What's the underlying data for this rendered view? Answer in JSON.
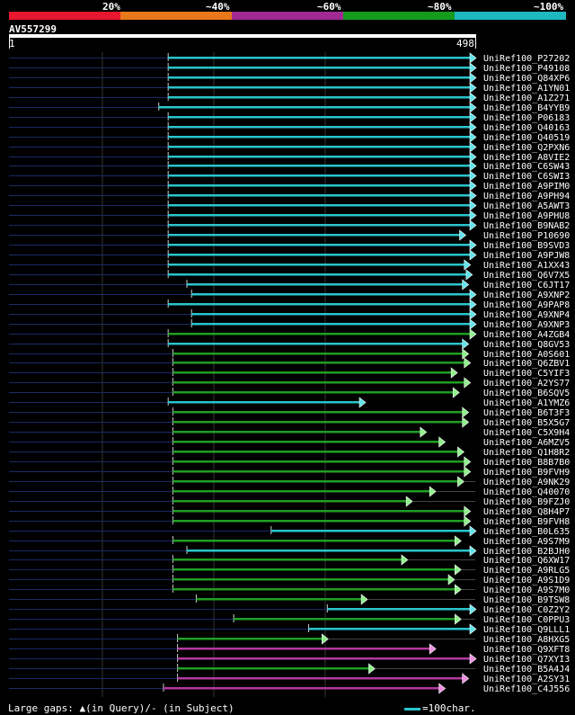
{
  "legend": {
    "labels": [
      "20%",
      "~40%",
      "~60%",
      "~80%",
      "~100%"
    ],
    "colors": [
      "#e8162f",
      "#e8781a",
      "#a02a94",
      "#159a1c",
      "#1db8c0"
    ]
  },
  "query": {
    "id": "AV557299",
    "start": "1",
    "end": "498",
    "length": 498
  },
  "hits": [
    {
      "name": "UniRef100_P27202",
      "start": 170,
      "end": 498,
      "color": "cyan",
      "pre": "dark",
      "post": ""
    },
    {
      "name": "UniRef100_P49108",
      "start": 170,
      "end": 498,
      "color": "cyan",
      "pre": "dark",
      "post": ""
    },
    {
      "name": "UniRef100_Q84XP6",
      "start": 170,
      "end": 498,
      "color": "cyan",
      "pre": "dark",
      "post": ""
    },
    {
      "name": "UniRef100_A1YN01",
      "start": 170,
      "end": 498,
      "color": "cyan",
      "pre": "dark",
      "post": ""
    },
    {
      "name": "UniRef100_A1Z271",
      "start": 170,
      "end": 498,
      "color": "cyan",
      "pre": "dark",
      "post": ""
    },
    {
      "name": "UniRef100_B4YYB9",
      "start": 160,
      "end": 498,
      "color": "cyan",
      "pre": "dark",
      "post": ""
    },
    {
      "name": "UniRef100_P06183",
      "start": 170,
      "end": 498,
      "color": "cyan",
      "pre": "dark",
      "post": ""
    },
    {
      "name": "UniRef100_Q40163",
      "start": 170,
      "end": 498,
      "color": "cyan",
      "pre": "dark",
      "post": ""
    },
    {
      "name": "UniRef100_Q40519",
      "start": 170,
      "end": 498,
      "color": "cyan",
      "pre": "dark",
      "post": ""
    },
    {
      "name": "UniRef100_Q2PXN6",
      "start": 170,
      "end": 498,
      "color": "cyan",
      "pre": "dark",
      "post": ""
    },
    {
      "name": "UniRef100_A8VIE2",
      "start": 170,
      "end": 498,
      "color": "cyan",
      "pre": "dark",
      "post": ""
    },
    {
      "name": "UniRef100_C6SW43",
      "start": 170,
      "end": 498,
      "color": "cyan",
      "pre": "dark",
      "post": ""
    },
    {
      "name": "UniRef100_C6SWI3",
      "start": 170,
      "end": 498,
      "color": "cyan",
      "pre": "dark",
      "post": ""
    },
    {
      "name": "UniRef100_A9PIM0",
      "start": 170,
      "end": 498,
      "color": "cyan",
      "pre": "dark",
      "post": ""
    },
    {
      "name": "UniRef100_A9PH94",
      "start": 170,
      "end": 498,
      "color": "cyan",
      "pre": "dark",
      "post": ""
    },
    {
      "name": "UniRef100_A5AWT3",
      "start": 170,
      "end": 498,
      "color": "cyan",
      "pre": "dark",
      "post": ""
    },
    {
      "name": "UniRef100_A9PHU8",
      "start": 170,
      "end": 498,
      "color": "cyan",
      "pre": "dark",
      "post": ""
    },
    {
      "name": "UniRef100_B9NAB2",
      "start": 170,
      "end": 498,
      "color": "cyan",
      "pre": "dark",
      "post": ""
    },
    {
      "name": "UniRef100_P10690",
      "start": 170,
      "end": 487,
      "color": "cyan",
      "pre": "dark",
      "post": ""
    },
    {
      "name": "UniRef100_B9SVD3",
      "start": 170,
      "end": 498,
      "color": "cyan",
      "pre": "dark",
      "post": ""
    },
    {
      "name": "UniRef100_A9PJW8",
      "start": 170,
      "end": 498,
      "color": "cyan",
      "pre": "dark",
      "post": ""
    },
    {
      "name": "UniRef100_A1XX43",
      "start": 170,
      "end": 492,
      "color": "cyan",
      "pre": "dark",
      "post": ""
    },
    {
      "name": "UniRef100_Q6V7X5",
      "start": 170,
      "end": 494,
      "color": "cyan",
      "pre": "dark",
      "post": ""
    },
    {
      "name": "UniRef100_C6JT17",
      "start": 190,
      "end": 490,
      "color": "cyan",
      "pre": "dark",
      "post": ""
    },
    {
      "name": "UniRef100_A9XNP2",
      "start": 195,
      "end": 498,
      "color": "cyan",
      "pre": "dark",
      "post": ""
    },
    {
      "name": "UniRef100_A9PAP8",
      "start": 170,
      "end": 498,
      "color": "cyan",
      "pre": "dark",
      "post": ""
    },
    {
      "name": "UniRef100_A9XNP4",
      "start": 195,
      "end": 498,
      "color": "cyan",
      "pre": "dark",
      "post": ""
    },
    {
      "name": "UniRef100_A9XNP3",
      "start": 195,
      "end": 498,
      "color": "cyan",
      "pre": "dark",
      "post": ""
    },
    {
      "name": "UniRef100_A4ZGB4",
      "start": 170,
      "end": 498,
      "color": "green",
      "pre": "dark",
      "post": ""
    },
    {
      "name": "UniRef100_Q8GV53",
      "start": 170,
      "end": 490,
      "color": "cyan",
      "pre": "dark",
      "post": ""
    },
    {
      "name": "UniRef100_A0S601",
      "start": 175,
      "end": 490,
      "color": "green",
      "pre": "dark",
      "post": ""
    },
    {
      "name": "UniRef100_Q6ZBV1",
      "start": 175,
      "end": 492,
      "color": "green",
      "pre": "dark",
      "post": ""
    },
    {
      "name": "UniRef100_C5YIF3",
      "start": 175,
      "end": 478,
      "color": "green",
      "pre": "dark",
      "post": ""
    },
    {
      "name": "UniRef100_A2YS77",
      "start": 175,
      "end": 492,
      "color": "green",
      "pre": "dark",
      "post": ""
    },
    {
      "name": "UniRef100_B6SQV5",
      "start": 175,
      "end": 480,
      "color": "green",
      "pre": "dark",
      "post": ""
    },
    {
      "name": "UniRef100_A1YMZ6",
      "start": 170,
      "end": 380,
      "color": "cyan",
      "pre": "dark",
      "post": ""
    },
    {
      "name": "UniRef100_B6T3F3",
      "start": 175,
      "end": 490,
      "color": "green",
      "pre": "dark",
      "post": ""
    },
    {
      "name": "UniRef100_B5X5G7",
      "start": 175,
      "end": 490,
      "color": "green",
      "pre": "dark",
      "post": ""
    },
    {
      "name": "UniRef100_C5X9H4",
      "start": 175,
      "end": 445,
      "color": "green",
      "pre": "dark",
      "post": ""
    },
    {
      "name": "UniRef100_A6MZV5",
      "start": 175,
      "end": 465,
      "color": "green",
      "pre": "dark",
      "post": ""
    },
    {
      "name": "UniRef100_Q1H8R2",
      "start": 175,
      "end": 485,
      "color": "green",
      "pre": "dark",
      "post": ""
    },
    {
      "name": "UniRef100_B8B7B0",
      "start": 175,
      "end": 492,
      "color": "green",
      "pre": "dark",
      "post": ""
    },
    {
      "name": "UniRef100_B9FVH9",
      "start": 175,
      "end": 492,
      "color": "green",
      "pre": "dark",
      "post": ""
    },
    {
      "name": "UniRef100_A9NK29",
      "start": 175,
      "end": 485,
      "color": "green",
      "pre": "dark",
      "post": "gray"
    },
    {
      "name": "UniRef100_Q40070",
      "start": 175,
      "end": 455,
      "color": "green",
      "pre": "dark",
      "post": "gray"
    },
    {
      "name": "UniRef100_B9FZJ0",
      "start": 175,
      "end": 430,
      "color": "green",
      "pre": "dark",
      "post": "gray"
    },
    {
      "name": "UniRef100_Q8H4P7",
      "start": 175,
      "end": 492,
      "color": "green",
      "pre": "dark",
      "post": ""
    },
    {
      "name": "UniRef100_B9FVH8",
      "start": 175,
      "end": 492,
      "color": "green",
      "pre": "dark",
      "post": ""
    },
    {
      "name": "UniRef100_B0L635",
      "start": 280,
      "end": 498,
      "color": "cyan",
      "pre": "dark",
      "post": ""
    },
    {
      "name": "UniRef100_A9S7M9",
      "start": 175,
      "end": 482,
      "color": "green",
      "pre": "dark",
      "post": ""
    },
    {
      "name": "UniRef100_B2BJH0",
      "start": 190,
      "end": 498,
      "color": "cyan",
      "pre": "dark",
      "post": ""
    },
    {
      "name": "UniRef100_Q6XW17",
      "start": 175,
      "end": 425,
      "color": "green",
      "pre": "dark",
      "post": "gray"
    },
    {
      "name": "UniRef100_A9RLG5",
      "start": 175,
      "end": 482,
      "color": "green",
      "pre": "dark",
      "post": "gray"
    },
    {
      "name": "UniRef100_A9S1D9",
      "start": 175,
      "end": 475,
      "color": "green",
      "pre": "dark",
      "post": "gray"
    },
    {
      "name": "UniRef100_A9S7M0",
      "start": 175,
      "end": 482,
      "color": "green",
      "pre": "dark",
      "post": "gray"
    },
    {
      "name": "UniRef100_B9TSW8",
      "start": 200,
      "end": 382,
      "color": "green",
      "pre": "dark",
      "post": "gray"
    },
    {
      "name": "UniRef100_C0Z2Y2",
      "start": 340,
      "end": 498,
      "color": "cyan",
      "pre": "dark",
      "post": ""
    },
    {
      "name": "UniRef100_C0PPU3",
      "start": 240,
      "end": 482,
      "color": "green",
      "pre": "dark",
      "post": "gray"
    },
    {
      "name": "UniRef100_Q9LLL1",
      "start": 320,
      "end": 498,
      "color": "cyan",
      "pre": "dark",
      "post": ""
    },
    {
      "name": "UniRef100_A8HXG5",
      "start": 180,
      "end": 340,
      "color": "green",
      "pre": "dark",
      "post": "gray"
    },
    {
      "name": "UniRef100_Q9XFT8",
      "start": 180,
      "end": 455,
      "color": "magenta",
      "pre": "dark",
      "post": ""
    },
    {
      "name": "UniRef100_Q7XYI3",
      "start": 180,
      "end": 498,
      "color": "magenta",
      "pre": "dark",
      "post": ""
    },
    {
      "name": "UniRef100_B5A4J4",
      "start": 180,
      "end": 390,
      "color": "green",
      "pre": "dark",
      "post": "gray"
    },
    {
      "name": "UniRef100_A2SY31",
      "start": 180,
      "end": 490,
      "color": "magenta",
      "pre": "dark",
      "post": ""
    },
    {
      "name": "UniRef100_C4J556",
      "start": 165,
      "end": 465,
      "color": "magenta",
      "pre": "dark",
      "post": ""
    }
  ],
  "footer": {
    "gaps_text": "Large gaps: ▲(in Query)/- (in Subject)",
    "scale_text": "=100char."
  }
}
